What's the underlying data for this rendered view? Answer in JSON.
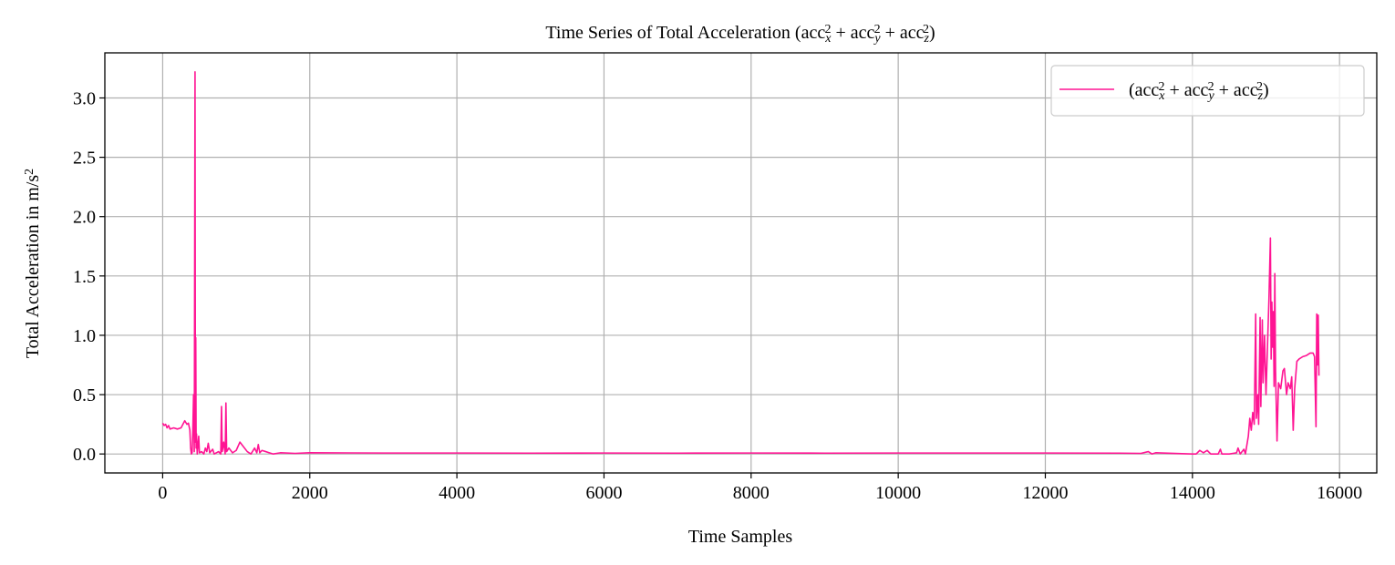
{
  "chart_data": {
    "type": "line",
    "title": "Time Series of Total Acceleration (acc_x^2 + acc_y^2 + acc_z^2)",
    "xlabel": "Time Samples",
    "ylabel": "Total Acceleration in m/s^2",
    "x": [
      0,
      20,
      40,
      60,
      80,
      100,
      150,
      200,
      250,
      300,
      330,
      350,
      370,
      380,
      390,
      400,
      410,
      420,
      430,
      440,
      445,
      450,
      455,
      460,
      470,
      490,
      500,
      530,
      560,
      580,
      600,
      620,
      640,
      680,
      700,
      760,
      790,
      800,
      810,
      830,
      850,
      860,
      870,
      900,
      950,
      1000,
      1050,
      1100,
      1150,
      1200,
      1250,
      1280,
      1300,
      1320,
      1350,
      1400,
      1450,
      1500,
      1600,
      1800,
      2000,
      3000,
      4000,
      5000,
      6000,
      7000,
      8000,
      9000,
      10000,
      11000,
      12000,
      13000,
      13300,
      13400,
      13450,
      13500,
      14000,
      14050,
      14100,
      14150,
      14200,
      14250,
      14350,
      14380,
      14400,
      14500,
      14600,
      14620,
      14650,
      14700,
      14720,
      14760,
      14780,
      14800,
      14820,
      14840,
      14860,
      14870,
      14890,
      14900,
      14920,
      14930,
      14950,
      14960,
      14980,
      15000,
      15020,
      15040,
      15060,
      15070,
      15080,
      15090,
      15100,
      15110,
      15120,
      15130,
      15150,
      15170,
      15200,
      15230,
      15250,
      15280,
      15300,
      15330,
      15350,
      15370,
      15390,
      15420,
      15450,
      15500,
      15550,
      15600,
      15640,
      15660,
      15680,
      15690,
      15700,
      15710,
      15720
    ],
    "series": [
      {
        "name": "(acc_x^2 + acc_y^2 + acc_z^2)",
        "color": "#ff1493",
        "values": [
          0.26,
          0.24,
          0.25,
          0.22,
          0.24,
          0.21,
          0.22,
          0.21,
          0.22,
          0.28,
          0.25,
          0.26,
          0.2,
          0.05,
          0.0,
          0.01,
          0.2,
          0.5,
          0.02,
          3.22,
          0.1,
          0.98,
          0.05,
          0.17,
          0.0,
          0.15,
          0.01,
          0.02,
          0.0,
          0.05,
          0.02,
          0.09,
          0.01,
          0.04,
          0.0,
          0.02,
          0.0,
          0.4,
          0.02,
          0.1,
          0.0,
          0.43,
          0.02,
          0.05,
          0.01,
          0.03,
          0.1,
          0.06,
          0.02,
          0.0,
          0.05,
          0.01,
          0.08,
          0.01,
          0.03,
          0.02,
          0.01,
          0.0,
          0.01,
          0.005,
          0.01,
          0.008,
          0.008,
          0.007,
          0.008,
          0.007,
          0.008,
          0.007,
          0.008,
          0.008,
          0.008,
          0.007,
          0.005,
          0.02,
          0.0,
          0.01,
          0.0,
          0.0,
          0.03,
          0.01,
          0.03,
          0.0,
          0.0,
          0.04,
          0.0,
          0.0,
          0.01,
          0.05,
          0.0,
          0.04,
          0.0,
          0.15,
          0.3,
          0.2,
          0.35,
          0.25,
          1.18,
          0.3,
          0.5,
          0.25,
          1.15,
          0.4,
          1.13,
          0.6,
          1.0,
          0.5,
          0.9,
          1.3,
          1.82,
          0.8,
          1.28,
          0.9,
          1.2,
          0.57,
          1.52,
          0.7,
          0.11,
          0.6,
          0.55,
          0.7,
          0.72,
          0.5,
          0.6,
          0.55,
          0.65,
          0.2,
          0.55,
          0.78,
          0.8,
          0.82,
          0.83,
          0.85,
          0.85,
          0.82,
          0.23,
          1.18,
          0.75,
          1.17,
          0.66
        ]
      }
    ],
    "xlim": [
      -786,
      16506
    ],
    "xticks": [
      0,
      2000,
      4000,
      6000,
      8000,
      10000,
      12000,
      14000,
      16000
    ],
    "ylim": [
      -0.16,
      3.38
    ],
    "yticks": [
      {
        "value": 0,
        "label": "0.0"
      },
      {
        "value": 0.5,
        "label": "0.5"
      },
      {
        "value": 1,
        "label": "1.0"
      },
      {
        "value": 1.5,
        "label": "1.5"
      },
      {
        "value": 2,
        "label": "2.0"
      },
      {
        "value": 2.5,
        "label": "2.5"
      },
      {
        "value": 3,
        "label": "3.0"
      }
    ],
    "grid": true,
    "legend": "upper right"
  }
}
